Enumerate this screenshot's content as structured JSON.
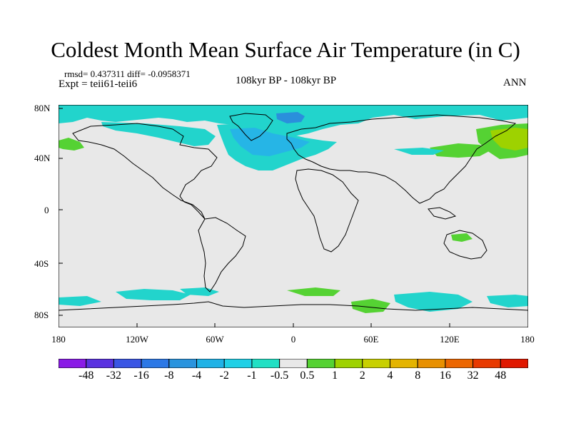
{
  "title": "Coldest Month Mean Surface Air Temperature (in C)",
  "stats": "rmsd= 0.437311  diff= -0.0958371",
  "expt": "Expt = teii61-teii6",
  "period": "108kyr BP - 108kyr BP",
  "season": "ANN",
  "map": {
    "lat_labels": [
      "80N",
      "40N",
      "0",
      "40S",
      "80S"
    ],
    "lon_labels": [
      "180",
      "120W",
      "60W",
      "0",
      "60E",
      "120E",
      "180"
    ],
    "colors": {
      "background": "#e8e8e8",
      "cyan": "#22d4cc",
      "light_blue": "#26b5e6",
      "blue": "#2a8fdc",
      "green": "#55d233",
      "yellow_green": "#9ed200"
    }
  },
  "colorbar": {
    "labels": [
      "-48",
      "-32",
      "-16",
      "-8",
      "-4",
      "-2",
      "-1",
      "-0.5",
      "0.5",
      "1",
      "2",
      "4",
      "8",
      "16",
      "32",
      "48"
    ],
    "colors": [
      "#8a1be6",
      "#5a32e0",
      "#3a55e4",
      "#2c78e6",
      "#2a94de",
      "#1fb2e6",
      "#1fd0e6",
      "#22e0c4",
      "#e8e8e8",
      "#55d233",
      "#9ed200",
      "#c8d000",
      "#e4b400",
      "#e89000",
      "#ec6600",
      "#e83a00",
      "#e01800"
    ]
  }
}
